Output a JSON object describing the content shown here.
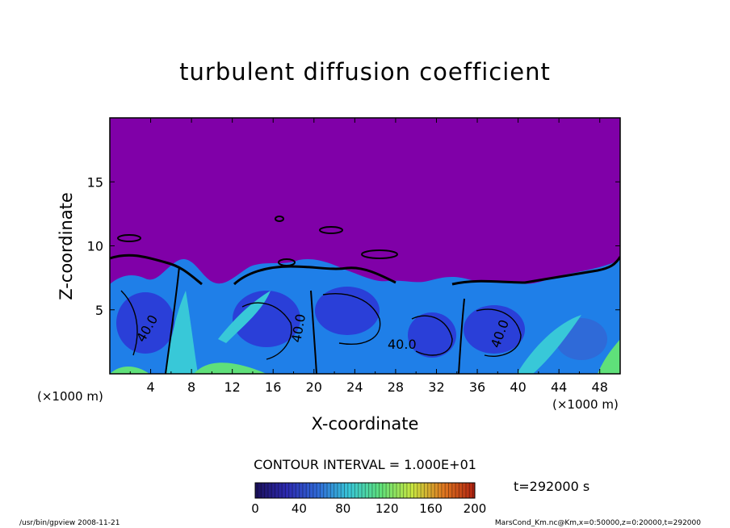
{
  "chart_data": {
    "type": "heatmap",
    "title": "turbulent diffusion coefficient",
    "xlabel": "X-coordinate",
    "ylabel": "Z-coordinate",
    "x_unit": "(×1000 m)",
    "xlim": [
      0,
      50
    ],
    "ylim": [
      0,
      20
    ],
    "x_ticks": [
      4,
      8,
      12,
      16,
      20,
      24,
      28,
      32,
      36,
      40,
      44,
      48
    ],
    "y_ticks": [
      5,
      10,
      15
    ],
    "contour_interval": "CONTOUR INTERVAL = 1.000E+01",
    "contour_labels": [
      "40.0",
      "40.0",
      "40.0",
      "40.0"
    ],
    "colorbar": {
      "ticks": [
        0,
        40,
        80,
        120,
        160,
        200
      ],
      "range": [
        0,
        200
      ],
      "colors": [
        "#1a0f5a",
        "#2d2ab0",
        "#2f6ad8",
        "#38c8d8",
        "#5fe07a",
        "#c8e640",
        "#e07820",
        "#b02010"
      ]
    },
    "time_label": "t=292000 s",
    "background_value_color": "#8000a8"
  },
  "footer": {
    "left": "/usr/bin/gpview   2008-11-21",
    "right": "MarsCond_Km.nc@Km,x=0:50000,z=0:20000,t=292000"
  }
}
